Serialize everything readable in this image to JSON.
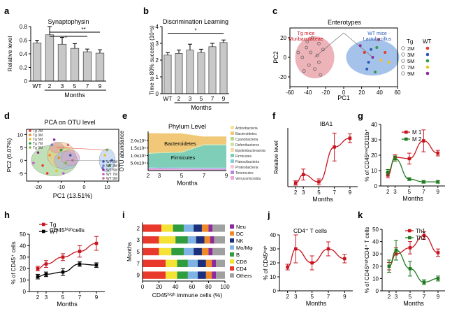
{
  "chart_data": [
    {
      "id": "a",
      "panel_label": "a",
      "type": "bar",
      "title": "Synaptophysin",
      "xlabel": "Months",
      "ylabel": "Relative level",
      "categories": [
        "WT",
        "2",
        "3",
        "5",
        "7",
        "9"
      ],
      "values": [
        0.56,
        0.68,
        0.54,
        0.48,
        0.43,
        0.41
      ],
      "errors": [
        0.04,
        0.12,
        0.1,
        0.07,
        0.04,
        0.05
      ],
      "ylim": [
        0,
        0.8
      ],
      "yticks": [
        "0",
        "0.2",
        "0.4",
        "0.6",
        "0.8"
      ],
      "xticks": [
        "WT",
        "2",
        "3",
        "5",
        "7",
        "9"
      ],
      "significance": [
        "**",
        "*"
      ],
      "bar_color": "#c8c8c8"
    },
    {
      "id": "b",
      "panel_label": "b",
      "type": "bar",
      "title": "Discrimination Learning",
      "xlabel": "Months",
      "ylabel": "Time to 80% success (10⁴s)",
      "categories": [
        "WT",
        "2",
        "3",
        "5",
        "7",
        "9"
      ],
      "values": [
        2.3,
        2.4,
        2.6,
        2.45,
        2.8,
        3.05
      ],
      "errors": [
        0.15,
        0.2,
        0.35,
        0.2,
        0.2,
        0.15
      ],
      "ylim": [
        0,
        4
      ],
      "yticks": [
        "0",
        "1",
        "2",
        "3",
        "4"
      ],
      "xticks": [
        "WT",
        "2",
        "3",
        "5",
        "7",
        "9"
      ],
      "significance": [
        "*"
      ],
      "bar_color": "#c8c8c8"
    },
    {
      "id": "c",
      "panel_label": "c",
      "type": "scatter",
      "title": "Enterotypes",
      "xlabel": "PC1",
      "ylabel": "PC2",
      "xticks": [
        "-60",
        "-40",
        "-20",
        "0",
        "20",
        "40",
        "60"
      ],
      "yticks": [
        "-20",
        "0",
        "20"
      ],
      "xlim": [
        -65,
        65
      ],
      "ylim": [
        -30,
        30
      ],
      "annotations": [
        "Tg mice",
        "Muribaculaceae",
        "WT mice",
        "Lactobacillus"
      ],
      "legend": {
        "header": [
          "Tg",
          "WT"
        ],
        "rows": [
          "2M",
          "3M",
          "5M",
          "7M",
          "9M"
        ],
        "wt_colors": [
          "#e8392c",
          "#2a5bb6",
          "#2e9c3f",
          "#f0c020",
          "#8e2a9c"
        ]
      },
      "clusters": [
        {
          "name": "Tg",
          "center": [
            -35,
            0
          ],
          "color": "#e7a0a8"
        },
        {
          "name": "WT",
          "center": [
            35,
            0
          ],
          "color": "#8fb3e6"
        }
      ]
    },
    {
      "id": "d",
      "panel_label": "d",
      "type": "scatter",
      "title": "PCA on OTU level",
      "xlabel": "PC1 (13.51%)",
      "ylabel": "PC2 (6.07%)",
      "xticks": [
        "-20",
        "-10",
        "0",
        "10"
      ],
      "yticks": [
        "-5",
        "0",
        "5",
        "10"
      ],
      "xlim": [
        -25,
        15
      ],
      "ylim": [
        -8,
        12
      ],
      "legend": [
        {
          "label": "Tg 2M",
          "color": "#e8392c"
        },
        {
          "label": "Tg 3M",
          "color": "#f08a28"
        },
        {
          "label": "Tg 5M",
          "color": "#f0c020"
        },
        {
          "label": "Tg 7M",
          "color": "#2e9c3f"
        },
        {
          "label": "Tg 9M",
          "color": "#7ab648"
        },
        {
          "label": "WT 2M",
          "color": "#2a5bb6"
        },
        {
          "label": "WT 3M",
          "color": "#6f7fd0"
        },
        {
          "label": "WT 5M",
          "color": "#8e2a9c"
        },
        {
          "label": "WT 7M",
          "color": "#c060c0"
        },
        {
          "label": "WT 9M",
          "color": "#d06a8a"
        }
      ],
      "clusters": [
        {
          "color": "#8cc97a",
          "center": [
            -13,
            0
          ],
          "rx": 10,
          "ry": 6
        },
        {
          "color": "#f2c77e",
          "center": [
            -10,
            2
          ],
          "rx": 6,
          "ry": 5
        },
        {
          "color": "#9ab4e6",
          "center": [
            -8,
            0
          ],
          "rx": 5,
          "ry": 3.5
        },
        {
          "color": "#d9a0d0",
          "center": [
            -6,
            1
          ],
          "rx": 4,
          "ry": 3
        },
        {
          "color": "#e29aa0",
          "center": [
            -12,
            5
          ],
          "rx": 3,
          "ry": 2
        },
        {
          "color": "#a9c3ea",
          "center": [
            10,
            0
          ],
          "rx": 3.5,
          "ry": 4.5
        }
      ]
    },
    {
      "id": "e",
      "panel_label": "e",
      "type": "area",
      "title": "Phylum Level",
      "xlabel": "Months",
      "ylabel": "OTU abundance",
      "x": [
        2,
        3,
        5,
        7,
        9
      ],
      "xticks": [
        "2",
        "3",
        "5",
        "7",
        "9"
      ],
      "yticks": [
        "5.0x10⁴",
        "1.0x10⁵",
        "1.5x10⁵",
        "2.0x10⁵"
      ],
      "ylim": [
        0,
        260000
      ],
      "annotations": [
        "Bacteroidetes",
        "Firmicutes"
      ],
      "series": [
        {
          "name": "Verrucomicrobia",
          "color": "#e8a8d8",
          "values": [
            10000,
            9000,
            8000,
            7000,
            7000
          ]
        },
        {
          "name": "Tenericutes",
          "color": "#b98ad9",
          "values": [
            5000,
            5000,
            5000,
            5000,
            5000
          ]
        },
        {
          "name": "Proteobacteria",
          "color": "#f3c7e0",
          "values": [
            3000,
            3000,
            3000,
            3000,
            3000
          ]
        },
        {
          "name": "Patescibacteria",
          "color": "#7fcfe0",
          "values": [
            4000,
            4000,
            4000,
            4000,
            4000
          ]
        },
        {
          "name": "Firmicutes",
          "color": "#7fcfb8",
          "values": [
            90000,
            95000,
            100000,
            150000,
            150000
          ]
        },
        {
          "name": "Epsilonbacteraeota",
          "color": "#f4d9a6",
          "values": [
            2000,
            2000,
            2000,
            2000,
            2000
          ]
        },
        {
          "name": "Deferribacteres",
          "color": "#d0e0a0",
          "values": [
            2000,
            2000,
            2000,
            2000,
            2000
          ]
        },
        {
          "name": "Cyanobacteria",
          "color": "#b9d98a",
          "values": [
            2000,
            2000,
            2000,
            2000,
            2000
          ]
        },
        {
          "name": "Bacteroidetes",
          "color": "#f0c878",
          "values": [
            130000,
            125000,
            120000,
            50000,
            50000
          ]
        },
        {
          "name": "Actinobacteria",
          "color": "#f3e49a",
          "values": [
            2000,
            2000,
            2000,
            2000,
            2000
          ]
        }
      ],
      "legend_order": [
        "Actinobacteria",
        "Bacteroidetes",
        "Cyanobacteria",
        "Deferribacteres",
        "Epsilonbacteraeota",
        "Firmicutes",
        "Patescibacteria",
        "Proteobacteria",
        "Tenericutes",
        "Verrucomicrobia"
      ]
    },
    {
      "id": "f",
      "panel_label": "f",
      "type": "line",
      "title": "IBA1",
      "xlabel": "Months",
      "ylabel": "Relative level",
      "x": [
        2,
        3,
        5,
        7,
        9
      ],
      "xticks": [
        "2",
        "3",
        "5",
        "7",
        "9"
      ],
      "xlim": [
        1,
        10
      ],
      "ylim": [
        0,
        1600
      ],
      "series": [
        {
          "color": "#c8141e",
          "values": [
            100,
            330,
            130,
            1080,
            1320
          ],
          "errors": [
            60,
            150,
            80,
            380,
            120
          ]
        }
      ]
    },
    {
      "id": "g",
      "panel_label": "g",
      "type": "line",
      "title": "",
      "xlabel": "Months",
      "ylabel": "% of CD45ˡᵒʷCD11b⁺",
      "x": [
        2,
        3,
        5,
        7,
        9
      ],
      "xticks": [
        "2",
        "3",
        "5",
        "7",
        "9"
      ],
      "yticks": [
        "0",
        "10",
        "20",
        "30",
        "40"
      ],
      "xlim": [
        1,
        10
      ],
      "ylim": [
        0,
        45
      ],
      "series": [
        {
          "name": "M 1",
          "color": "#c8141e",
          "values": [
            8,
            21,
            20,
            33,
            24
          ],
          "errors": [
            2,
            2,
            4,
            8,
            2
          ]
        },
        {
          "name": "M 2",
          "color": "#1e7a1e",
          "values": [
            10,
            20,
            5,
            3,
            3
          ],
          "errors": [
            2,
            2,
            1,
            1,
            1
          ]
        }
      ]
    },
    {
      "id": "h",
      "panel_label": "h",
      "type": "line",
      "title": "CD45ʰⁱᵍʰcells",
      "xlabel": "Months",
      "ylabel": "% of CD45⁺ cells",
      "x": [
        2,
        3,
        5,
        7,
        9
      ],
      "xticks": [
        "2",
        "3",
        "5",
        "7",
        "9"
      ],
      "yticks": [
        "0",
        "10",
        "20",
        "30",
        "40",
        "50"
      ],
      "xlim": [
        1,
        10
      ],
      "ylim": [
        0,
        50
      ],
      "series": [
        {
          "name": "Tg",
          "color": "#c8141e",
          "values": [
            20,
            24,
            30,
            35,
            42
          ],
          "errors": [
            2,
            3,
            3,
            5,
            6
          ]
        },
        {
          "name": "WT",
          "color": "#000000",
          "values": [
            13,
            15,
            17,
            24,
            23
          ],
          "errors": [
            2,
            2,
            3,
            2,
            2
          ]
        }
      ]
    },
    {
      "id": "i",
      "panel_label": "i",
      "type": "bar",
      "orientation": "horizontal",
      "stacked": true,
      "xlabel": "CD45ʰⁱᵍʰ immune cells (%)",
      "ylabel": "Months",
      "categories": [
        "2",
        "3",
        "5",
        "7",
        "9"
      ],
      "xticks": [
        "0",
        "20",
        "40",
        "60",
        "80",
        "100"
      ],
      "xlim": [
        0,
        100
      ],
      "series": [
        {
          "name": "CD4",
          "color": "#e8392c",
          "values": [
            23,
            20,
            20,
            28,
            28
          ]
        },
        {
          "name": "CD8",
          "color": "#f4e234",
          "values": [
            14,
            20,
            15,
            14,
            14
          ]
        },
        {
          "name": "B",
          "color": "#2e9c3f",
          "values": [
            13,
            15,
            15,
            13,
            13
          ]
        },
        {
          "name": "Mo/Mφ",
          "color": "#7fb3e6",
          "values": [
            12,
            10,
            12,
            12,
            12
          ]
        },
        {
          "name": "NK",
          "color": "#1b2f7a",
          "values": [
            10,
            10,
            10,
            10,
            10
          ]
        },
        {
          "name": "DC",
          "color": "#f08a28",
          "values": [
            8,
            7,
            8,
            7,
            7
          ]
        },
        {
          "name": "Neu",
          "color": "#8e2a9c",
          "values": [
            5,
            5,
            5,
            5,
            5
          ]
        },
        {
          "name": "Others",
          "color": "#a0a0a0",
          "values": [
            15,
            13,
            15,
            11,
            11
          ]
        }
      ],
      "legend_order": [
        "Neu",
        "DC",
        "NK",
        "Mo/Mφ",
        "B",
        "CD8",
        "CD4",
        "Others"
      ]
    },
    {
      "id": "j",
      "panel_label": "j",
      "type": "line",
      "title": "CD4⁺ T cells",
      "xlabel": "Months",
      "ylabel": "% of CD45ʰⁱᵍʰ",
      "x": [
        2,
        3,
        5,
        7,
        9
      ],
      "xticks": [
        "2",
        "3",
        "5",
        "7",
        "9"
      ],
      "yticks": [
        "0",
        "10",
        "20",
        "30",
        "40"
      ],
      "xlim": [
        1,
        10
      ],
      "ylim": [
        0,
        40
      ],
      "series": [
        {
          "color": "#c8141e",
          "values": [
            17,
            30,
            20,
            30,
            23
          ],
          "errors": [
            2,
            10,
            5,
            5,
            3
          ]
        }
      ]
    },
    {
      "id": "k",
      "panel_label": "k",
      "type": "line",
      "title": "",
      "xlabel": "Months",
      "ylabel": "% of CD45ʰⁱᵍʰCD4⁺ T cells",
      "x": [
        2,
        3,
        5,
        7,
        9
      ],
      "xticks": [
        "2",
        "3",
        "5",
        "7",
        "9"
      ],
      "yticks": [
        "0",
        "10",
        "20",
        "30",
        "40",
        "50"
      ],
      "xlim": [
        1,
        10
      ],
      "ylim": [
        0,
        50
      ],
      "series": [
        {
          "name": "Th1",
          "color": "#c8141e",
          "values": [
            20,
            30,
            35,
            45,
            31
          ],
          "errors": [
            3,
            5,
            5,
            3,
            3
          ]
        },
        {
          "name": "Th2",
          "color": "#1e7a1e",
          "values": [
            20,
            33,
            18,
            7,
            10
          ],
          "errors": [
            5,
            8,
            6,
            2,
            2
          ]
        }
      ]
    }
  ]
}
